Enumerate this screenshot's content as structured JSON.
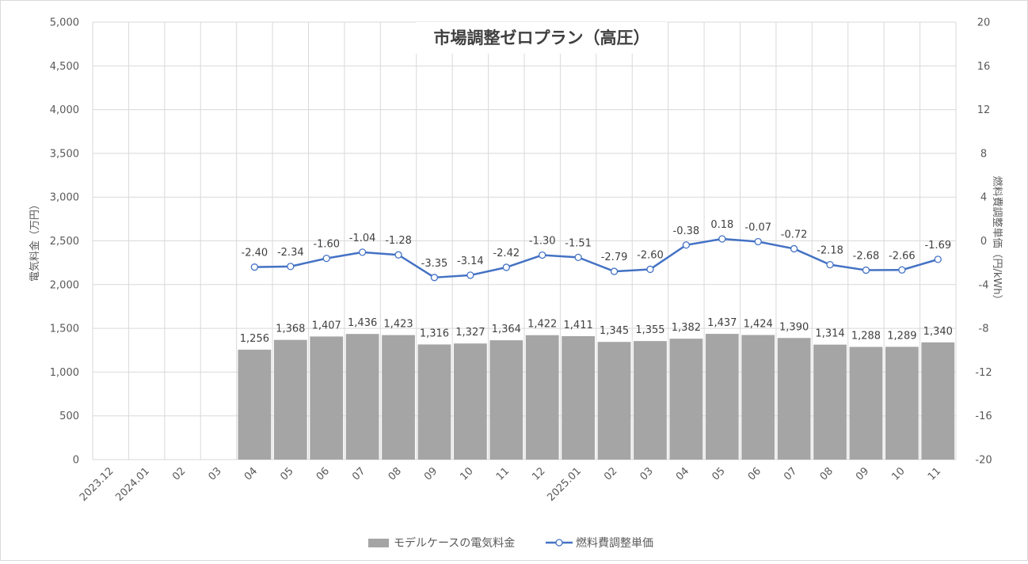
{
  "chart_data": {
    "type": "bar+line",
    "title": "市場調整ゼロプラン（高圧）",
    "categories": [
      "2023.12",
      "2024.01",
      "02",
      "03",
      "04",
      "05",
      "06",
      "07",
      "08",
      "09",
      "10",
      "11",
      "12",
      "2025.01",
      "02",
      "03",
      "04",
      "05",
      "06",
      "07",
      "08",
      "09",
      "10",
      "11"
    ],
    "y_left": {
      "label": "電気料金（万円）",
      "ylim": [
        0,
        5000
      ],
      "step": 500,
      "ticks": [
        "0",
        "500",
        "1,000",
        "1,500",
        "2,000",
        "2,500",
        "3,000",
        "3,500",
        "4,000",
        "4,500",
        "5,000"
      ]
    },
    "y_right": {
      "label": "燃料費調整単価（円/kWh）",
      "ylim": [
        -20,
        20
      ],
      "step": 4,
      "ticks": [
        "-20",
        "-16",
        "-12",
        "-8",
        "-4",
        "0",
        "4",
        "8",
        "12",
        "16",
        "20"
      ]
    },
    "grid": true,
    "legend_position": "bottom",
    "series": [
      {
        "name": "モデルケースの電気料金",
        "type": "bar",
        "axis": "left",
        "color": "#a5a5a5",
        "values": [
          null,
          null,
          null,
          null,
          1256,
          1368,
          1407,
          1436,
          1423,
          1316,
          1327,
          1364,
          1422,
          1411,
          1345,
          1355,
          1382,
          1437,
          1424,
          1390,
          1314,
          1288,
          1289,
          1340
        ],
        "labels": [
          "",
          "",
          "",
          "",
          "1,256",
          "1,368",
          "1,407",
          "1,436",
          "1,423",
          "1,316",
          "1,327",
          "1,364",
          "1,422",
          "1,411",
          "1,345",
          "1,355",
          "1,382",
          "1,437",
          "1,424",
          "1,390",
          "1,314",
          "1,288",
          "1,289",
          "1,340"
        ]
      },
      {
        "name": "燃料費調整単価",
        "type": "line",
        "axis": "right",
        "color": "#4472c4",
        "values": [
          null,
          null,
          null,
          null,
          -2.4,
          -2.34,
          -1.6,
          -1.04,
          -1.28,
          -3.35,
          -3.14,
          -2.42,
          -1.3,
          -1.51,
          -2.79,
          -2.6,
          -0.38,
          0.18,
          -0.07,
          -0.72,
          -2.18,
          -2.68,
          -2.66,
          -1.69
        ],
        "labels": [
          "",
          "",
          "",
          "",
          "-2.40",
          "-2.34",
          "-1.60",
          "-1.04",
          "-1.28",
          "-3.35",
          "-3.14",
          "-2.42",
          "-1.30",
          "-1.51",
          "-2.79",
          "-2.60",
          "-0.38",
          "0.18",
          "-0.07",
          "-0.72",
          "-2.18",
          "-2.68",
          "-2.66",
          "-1.69"
        ]
      }
    ]
  }
}
